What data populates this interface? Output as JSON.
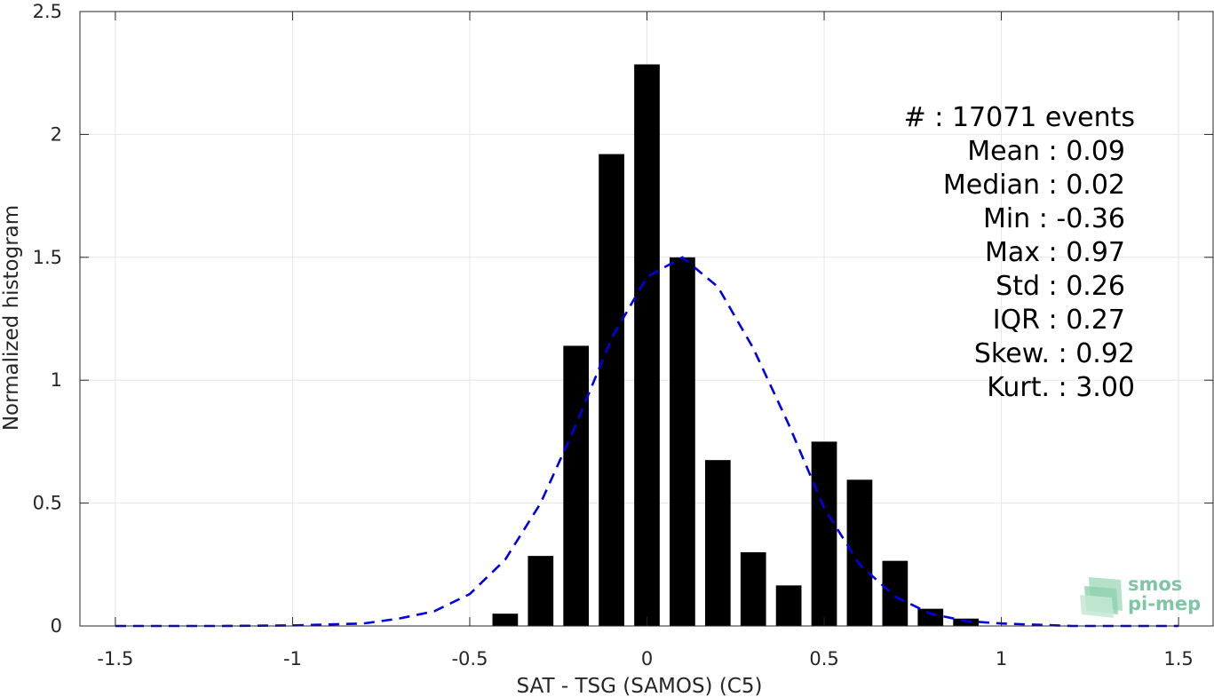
{
  "chart_data": {
    "type": "bar",
    "xlabel": "SAT - TSG (SAMOS) (C5)",
    "ylabel": "Normalized histogram",
    "xlim": [
      -1.6,
      1.6
    ],
    "ylim": [
      0,
      2.5
    ],
    "xticks": [
      -1.5,
      -1,
      -0.5,
      0,
      0.5,
      1,
      1.5
    ],
    "xtick_labels": [
      "-1.5",
      "-1",
      "-0.5",
      "0",
      "0.5",
      "1",
      "1.5"
    ],
    "yticks": [
      0,
      0.5,
      1,
      1.5,
      2,
      2.5
    ],
    "ytick_labels": [
      "0",
      "0.5",
      "1",
      "1.5",
      "2",
      "2.5"
    ],
    "grid": true,
    "bar_width": 0.072,
    "bars": {
      "x": [
        -0.4,
        -0.3,
        -0.2,
        -0.1,
        0.0,
        0.1,
        0.2,
        0.3,
        0.4,
        0.5,
        0.6,
        0.7,
        0.8,
        0.9
      ],
      "values": [
        0.05,
        0.285,
        1.14,
        1.92,
        2.285,
        1.5,
        0.675,
        0.3,
        0.165,
        0.75,
        0.595,
        0.265,
        0.07,
        0.03
      ],
      "color": "#000000"
    },
    "fit_curve": {
      "style": "dashed",
      "color": "#0000e6",
      "x": [
        -1.5,
        -1.2,
        -1.0,
        -0.8,
        -0.7,
        -0.6,
        -0.5,
        -0.4,
        -0.3,
        -0.2,
        -0.1,
        0.0,
        0.1,
        0.2,
        0.3,
        0.4,
        0.5,
        0.6,
        0.7,
        0.8,
        0.9,
        1.0,
        1.2,
        1.5
      ],
      "y": [
        0.0,
        0.0,
        0.002,
        0.01,
        0.03,
        0.06,
        0.13,
        0.27,
        0.5,
        0.82,
        1.17,
        1.42,
        1.5,
        1.38,
        1.13,
        0.82,
        0.48,
        0.25,
        0.12,
        0.05,
        0.02,
        0.01,
        0.0,
        0.0
      ]
    },
    "stats": [
      {
        "text": "#  : 17071 events",
        "anchor": "end"
      },
      {
        "text": "Mean : 0.09",
        "anchor": "end"
      },
      {
        "text": "Median : 0.02",
        "anchor": "end"
      },
      {
        "text": "Min : -0.36",
        "anchor": "end"
      },
      {
        "text": "Max : 0.97",
        "anchor": "end"
      },
      {
        "text": "Std : 0.26",
        "anchor": "end"
      },
      {
        "text": "IQR : 0.27",
        "anchor": "end"
      },
      {
        "text": "Skew. : 0.92",
        "anchor": "end"
      },
      {
        "text": "Kurt. : 3.00",
        "anchor": "end"
      }
    ]
  },
  "logo": {
    "line1": "smos",
    "line2": "pi-mep"
  }
}
